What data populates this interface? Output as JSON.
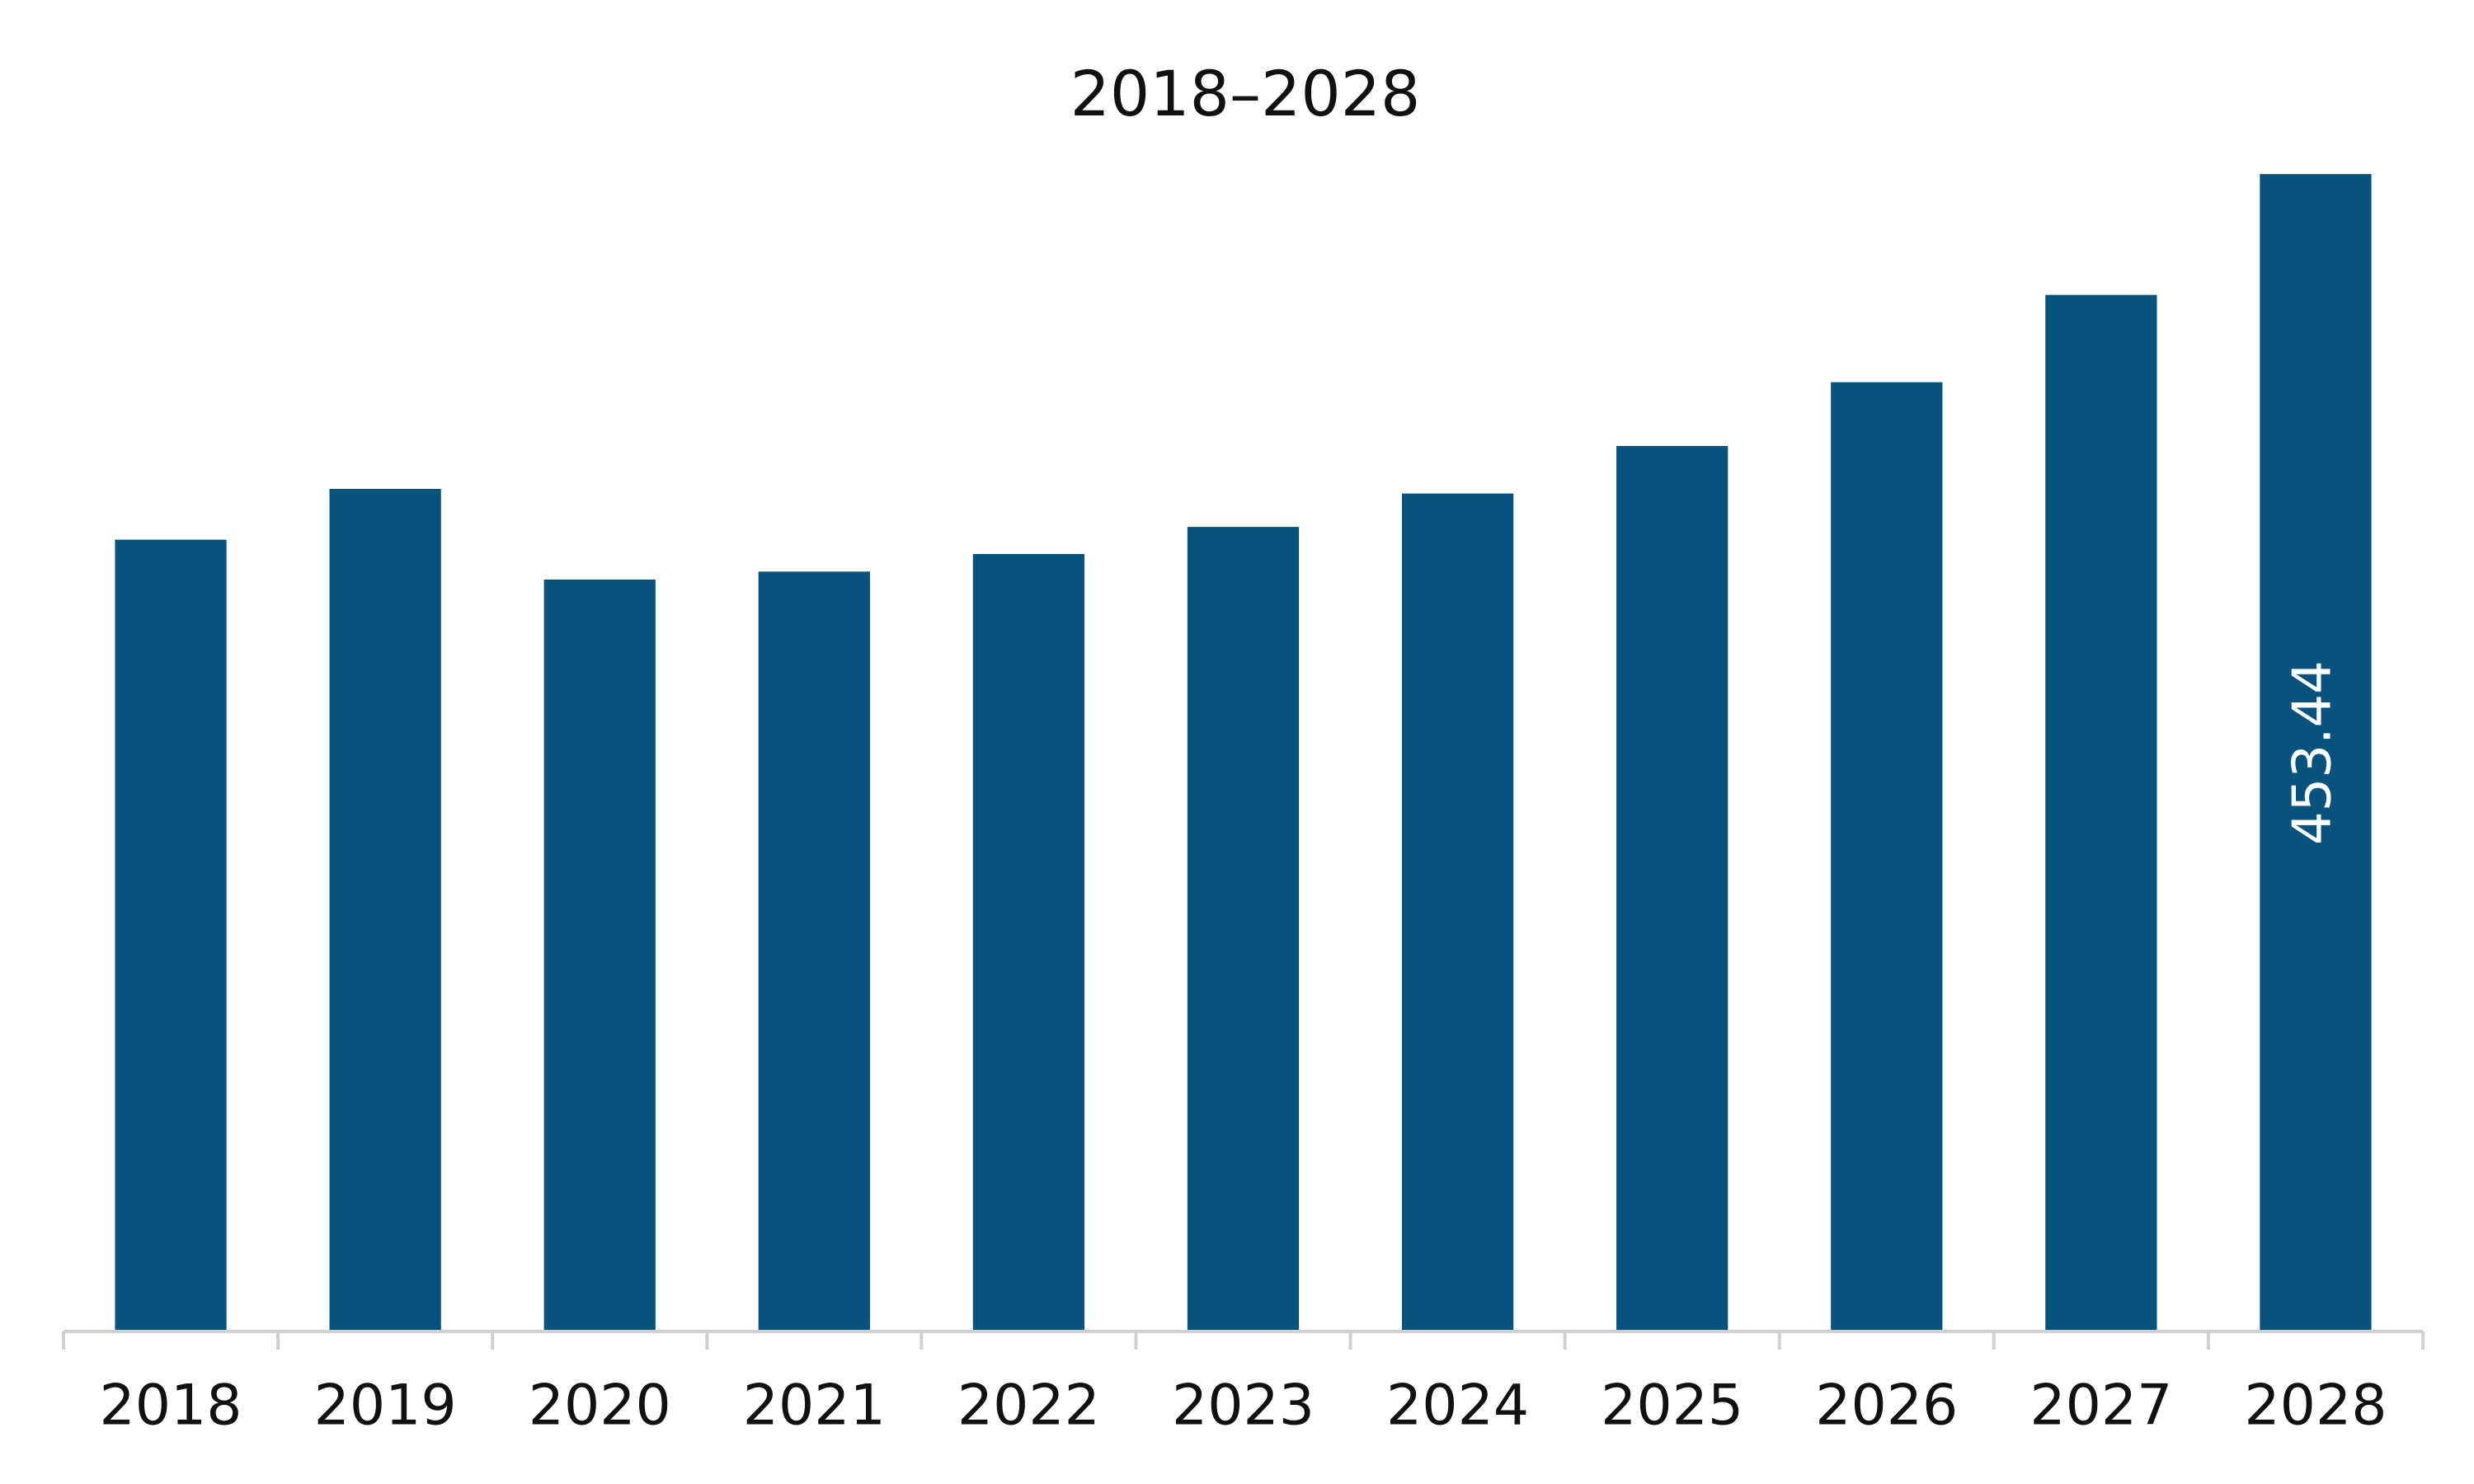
{
  "chart_data": {
    "type": "bar",
    "title": "2018–2028",
    "categories": [
      "2018",
      "2019",
      "2020",
      "2021",
      "2022",
      "2023",
      "2024",
      "2025",
      "2026",
      "2027",
      "2028"
    ],
    "values": [
      310.2,
      330.1,
      294.6,
      297.7,
      304.6,
      315.2,
      328.3,
      346.9,
      371.9,
      406.1,
      453.44
    ],
    "value_labels": [
      null,
      null,
      null,
      null,
      null,
      null,
      null,
      null,
      null,
      null,
      "453.44"
    ],
    "color": "#08527e",
    "ylim": [
      0,
      500
    ]
  }
}
